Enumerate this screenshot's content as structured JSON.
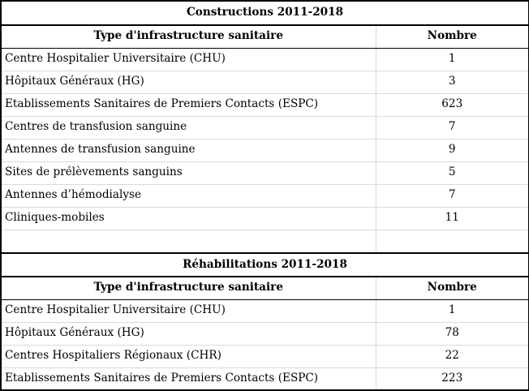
{
  "constructions": {
    "title": "Constructions 2011-2018",
    "header": {
      "type": "Type d'infrastructure sanitaire",
      "count": "Nombre"
    },
    "rows": [
      {
        "type": "Centre Hospitalier Universitaire (CHU)",
        "count": "1"
      },
      {
        "type": "Hôpitaux Généraux (HG)",
        "count": "3"
      },
      {
        "type": "Etablissements Sanitaires de Premiers Contacts (ESPC)",
        "count": "623"
      },
      {
        "type": "Centres de transfusion sanguine",
        "count": "7"
      },
      {
        "type": "Antennes de transfusion sanguine",
        "count": "9"
      },
      {
        "type": "Sites de prélèvements sanguins",
        "count": "5"
      },
      {
        "type": "Antennes d’hémodialyse",
        "count": "7"
      },
      {
        "type": "Cliniques-mobiles",
        "count": "11"
      }
    ]
  },
  "rehabilitations": {
    "title": "Réhabilitations 2011-2018",
    "header": {
      "type": "Type d'infrastructure sanitaire",
      "count": "Nombre"
    },
    "rows": [
      {
        "type": "Centre Hospitalier Universitaire (CHU)",
        "count": "1"
      },
      {
        "type": "Hôpitaux Généraux (HG)",
        "count": "78"
      },
      {
        "type": "Centres Hospitaliers Régionaux (CHR)",
        "count": "22"
      },
      {
        "type": "Etablissements Sanitaires de Premiers Contacts (ESPC)",
        "count": "223"
      }
    ]
  }
}
